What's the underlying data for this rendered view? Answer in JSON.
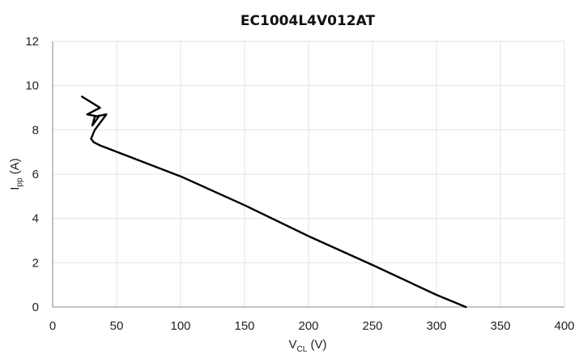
{
  "chart_data": {
    "type": "line",
    "title": "EC1004L4V012AT",
    "xlabel": {
      "main": "V",
      "sub": "CL",
      "unit": " (V)"
    },
    "ylabel": {
      "main": "I",
      "sub": "pp",
      "unit": " (A)"
    },
    "xlim": [
      0,
      400
    ],
    "ylim": [
      0,
      12
    ],
    "x_ticks": [
      "0",
      "50",
      "100",
      "150",
      "200",
      "250",
      "300",
      "350",
      "400"
    ],
    "y_ticks": [
      "0",
      "2",
      "4",
      "6",
      "8",
      "10",
      "12"
    ],
    "grid": true,
    "legend": false,
    "series": [
      {
        "color": "#000000",
        "points": [
          [
            23,
            9.5
          ],
          [
            37,
            9.0
          ],
          [
            27,
            8.7
          ],
          [
            36,
            8.6
          ],
          [
            31,
            8.2
          ],
          [
            33,
            8.6
          ],
          [
            42,
            8.7
          ],
          [
            33,
            8.0
          ],
          [
            30,
            7.6
          ],
          [
            32,
            7.45
          ],
          [
            37,
            7.3
          ],
          [
            100,
            5.9
          ],
          [
            150,
            4.6
          ],
          [
            200,
            3.2
          ],
          [
            250,
            1.9
          ],
          [
            300,
            0.55
          ],
          [
            323,
            0.0
          ]
        ]
      }
    ]
  }
}
